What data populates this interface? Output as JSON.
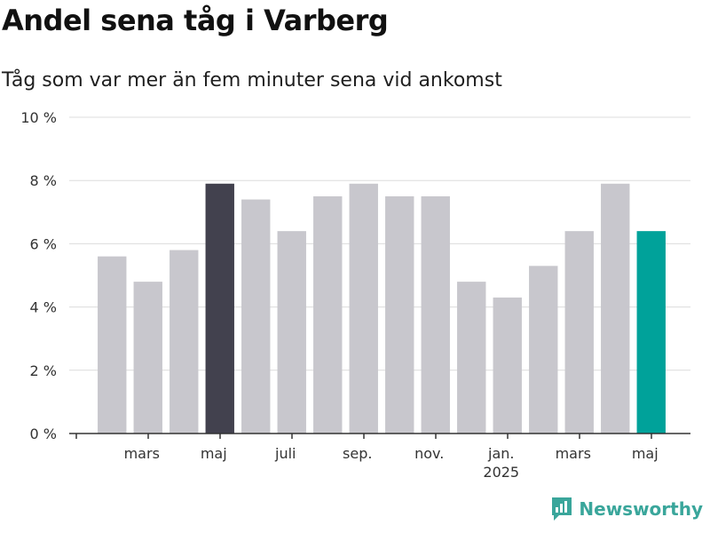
{
  "title": "Andel sena tåg i Varberg",
  "subtitle": "Tåg som var mer än fem minuter sena vid ankomst",
  "brand": "Newsworthy",
  "colors": {
    "default_bar": "#c8c7cd",
    "highlight_bar": "#42414e",
    "latest_bar": "#00a29a",
    "grid": "#dcdcdc",
    "axis": "#333333",
    "brand": "#3aa69b"
  },
  "chart_data": {
    "type": "bar",
    "categories": [
      "feb. 2024",
      "mars 2024",
      "apr. 2024",
      "maj 2024",
      "juni 2024",
      "juli 2024",
      "aug. 2024",
      "sep. 2024",
      "okt. 2024",
      "nov. 2024",
      "dec. 2024",
      "jan. 2025",
      "feb. 2025",
      "mars 2025",
      "apr. 2025",
      "maj 2025"
    ],
    "values": [
      5.6,
      4.8,
      5.8,
      7.9,
      7.4,
      6.4,
      7.5,
      7.9,
      7.5,
      7.5,
      4.8,
      4.3,
      5.3,
      6.4,
      7.9,
      6.4
    ],
    "highlight_index": 3,
    "latest_index": 15,
    "ylim": [
      0,
      10
    ],
    "yticks": [
      0,
      2,
      4,
      6,
      8,
      10
    ],
    "ytick_labels": [
      "0 %",
      "2 %",
      "4 %",
      "6 %",
      "8 %",
      "10 %"
    ],
    "xticks": [
      {
        "index": 1,
        "label": "mars",
        "sublabel": ""
      },
      {
        "index": 3,
        "label": "maj",
        "sublabel": ""
      },
      {
        "index": 5,
        "label": "juli",
        "sublabel": ""
      },
      {
        "index": 7,
        "label": "sep.",
        "sublabel": ""
      },
      {
        "index": 9,
        "label": "nov.",
        "sublabel": ""
      },
      {
        "index": 11,
        "label": "jan.",
        "sublabel": "2025"
      },
      {
        "index": 13,
        "label": "mars",
        "sublabel": ""
      },
      {
        "index": 15,
        "label": "maj",
        "sublabel": ""
      }
    ],
    "xlabel": "",
    "ylabel": "",
    "grid": true
  }
}
